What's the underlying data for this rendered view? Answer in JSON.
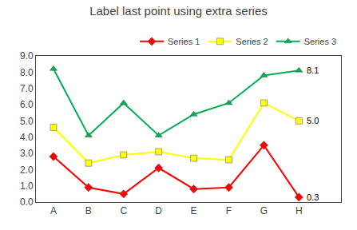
{
  "chart_data": {
    "type": "line",
    "title": "Label last point using extra series",
    "categories": [
      "A",
      "B",
      "C",
      "D",
      "E",
      "F",
      "G",
      "H"
    ],
    "series": [
      {
        "name": "Series 1",
        "color": "#FF0000",
        "marker": "diamond",
        "values": [
          2.8,
          0.9,
          0.5,
          2.1,
          0.8,
          0.9,
          3.5,
          0.3
        ],
        "value_labels": [
          null,
          null,
          null,
          null,
          null,
          null,
          null,
          "0.3"
        ]
      },
      {
        "name": "Series 2",
        "color": "#FFFF00",
        "marker": "square",
        "values": [
          4.6,
          2.4,
          2.9,
          3.1,
          2.7,
          2.6,
          6.1,
          5.0
        ],
        "value_labels": [
          null,
          null,
          null,
          null,
          null,
          null,
          null,
          "5.0"
        ]
      },
      {
        "name": "Series 3",
        "color": "#00B050",
        "marker": "triangle-up",
        "values": [
          8.2,
          4.1,
          6.1,
          4.1,
          5.4,
          6.1,
          7.8,
          8.1
        ],
        "value_labels": [
          null,
          null,
          null,
          null,
          null,
          null,
          null,
          "8.1"
        ]
      }
    ],
    "ylim": [
      0.0,
      9.0
    ],
    "yticks": [
      {
        "value": 0,
        "label": "0.0"
      },
      {
        "value": 1,
        "label": "1.0"
      },
      {
        "value": 2,
        "label": "2.0"
      },
      {
        "value": 3,
        "label": "3.0"
      },
      {
        "value": 4,
        "label": "4.0"
      },
      {
        "value": 5,
        "label": "5.0"
      },
      {
        "value": 6,
        "label": "6.0"
      },
      {
        "value": 7,
        "label": "7.0"
      },
      {
        "value": 8,
        "label": "8.0"
      },
      {
        "value": 9,
        "label": "9.0"
      }
    ],
    "grid": false,
    "legend": "top"
  }
}
